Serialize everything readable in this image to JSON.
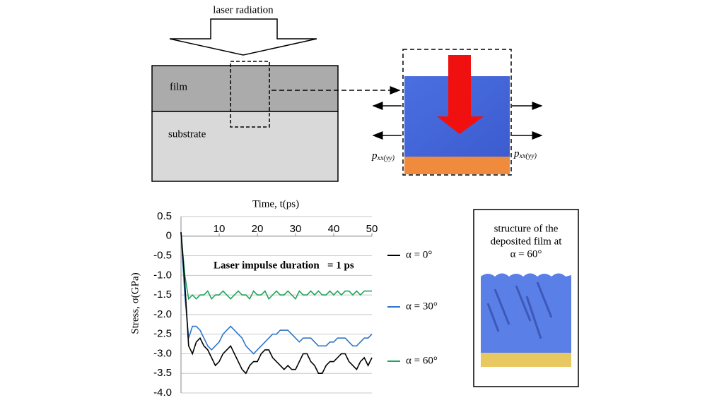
{
  "diagram": {
    "laser_label": "laser radiation",
    "film_label": "film",
    "substrate_label": "substrate",
    "pressure_label": {
      "symbol": "p",
      "subscript": "xx(yy)"
    }
  },
  "structure_box": {
    "lines": [
      "structure of the",
      "deposited film at",
      "α = 60°"
    ]
  },
  "chart_data": {
    "type": "line",
    "xlabel": "Time, t(ps)",
    "ylabel": "Stress, σ(GPa)",
    "annotation": "Laser impulse duration   = 1 ps",
    "x": [
      0,
      1,
      2,
      3,
      4,
      5,
      6,
      7,
      8,
      9,
      10,
      11,
      12,
      13,
      14,
      15,
      16,
      17,
      18,
      19,
      20,
      21,
      22,
      23,
      24,
      25,
      26,
      27,
      28,
      29,
      30,
      31,
      32,
      33,
      34,
      35,
      36,
      37,
      38,
      39,
      40,
      41,
      42,
      43,
      44,
      45,
      46,
      47,
      48,
      49,
      50
    ],
    "series": [
      {
        "name": "α = 0°",
        "color": "#000000",
        "values": [
          0.1,
          -1.2,
          -2.8,
          -3.0,
          -2.7,
          -2.6,
          -2.8,
          -2.9,
          -3.1,
          -3.3,
          -3.2,
          -3.0,
          -2.9,
          -2.8,
          -3.0,
          -3.2,
          -3.4,
          -3.5,
          -3.3,
          -3.2,
          -3.2,
          -3.0,
          -2.9,
          -2.9,
          -3.1,
          -3.2,
          -3.3,
          -3.4,
          -3.3,
          -3.4,
          -3.4,
          -3.2,
          -3.0,
          -3.0,
          -3.2,
          -3.3,
          -3.5,
          -3.5,
          -3.3,
          -3.2,
          -3.2,
          -3.1,
          -3.0,
          -3.0,
          -3.2,
          -3.3,
          -3.4,
          -3.2,
          -3.1,
          -3.3,
          -3.1
        ]
      },
      {
        "name": "α = 30°",
        "color": "#2e75c8",
        "values": [
          0.1,
          -1.5,
          -2.6,
          -2.3,
          -2.3,
          -2.4,
          -2.6,
          -2.8,
          -2.9,
          -2.8,
          -2.7,
          -2.5,
          -2.4,
          -2.3,
          -2.4,
          -2.5,
          -2.6,
          -2.8,
          -2.9,
          -3.0,
          -2.9,
          -2.8,
          -2.7,
          -2.6,
          -2.5,
          -2.5,
          -2.4,
          -2.4,
          -2.4,
          -2.5,
          -2.6,
          -2.7,
          -2.6,
          -2.6,
          -2.6,
          -2.7,
          -2.8,
          -2.8,
          -2.8,
          -2.7,
          -2.7,
          -2.6,
          -2.6,
          -2.6,
          -2.7,
          -2.8,
          -2.8,
          -2.7,
          -2.6,
          -2.6,
          -2.5
        ]
      },
      {
        "name": "α = 60°",
        "color": "#21a55a",
        "values": [
          0.1,
          -1.0,
          -1.6,
          -1.5,
          -1.6,
          -1.5,
          -1.5,
          -1.4,
          -1.6,
          -1.5,
          -1.5,
          -1.4,
          -1.5,
          -1.6,
          -1.5,
          -1.4,
          -1.5,
          -1.5,
          -1.6,
          -1.4,
          -1.5,
          -1.5,
          -1.4,
          -1.6,
          -1.5,
          -1.4,
          -1.5,
          -1.5,
          -1.4,
          -1.5,
          -1.6,
          -1.4,
          -1.5,
          -1.5,
          -1.4,
          -1.5,
          -1.4,
          -1.5,
          -1.5,
          -1.4,
          -1.5,
          -1.4,
          -1.5,
          -1.4,
          -1.4,
          -1.5,
          -1.4,
          -1.5,
          -1.4,
          -1.4,
          -1.4
        ]
      }
    ],
    "xlim": [
      0,
      50
    ],
    "xticks": [
      10,
      20,
      30,
      40,
      50
    ],
    "ylim": [
      -4,
      0.5
    ],
    "yticks": [
      0.5,
      {
        "value": 0,
        "label": "0"
      },
      -0.5,
      {
        "value": -1,
        "label": "-1.0"
      },
      -1.5,
      {
        "value": -2,
        "label": "-2.0"
      },
      -2.5,
      {
        "value": -3,
        "label": "-3.0"
      },
      -3.5,
      {
        "value": -4,
        "label": "-4.0"
      }
    ],
    "grid": true
  }
}
